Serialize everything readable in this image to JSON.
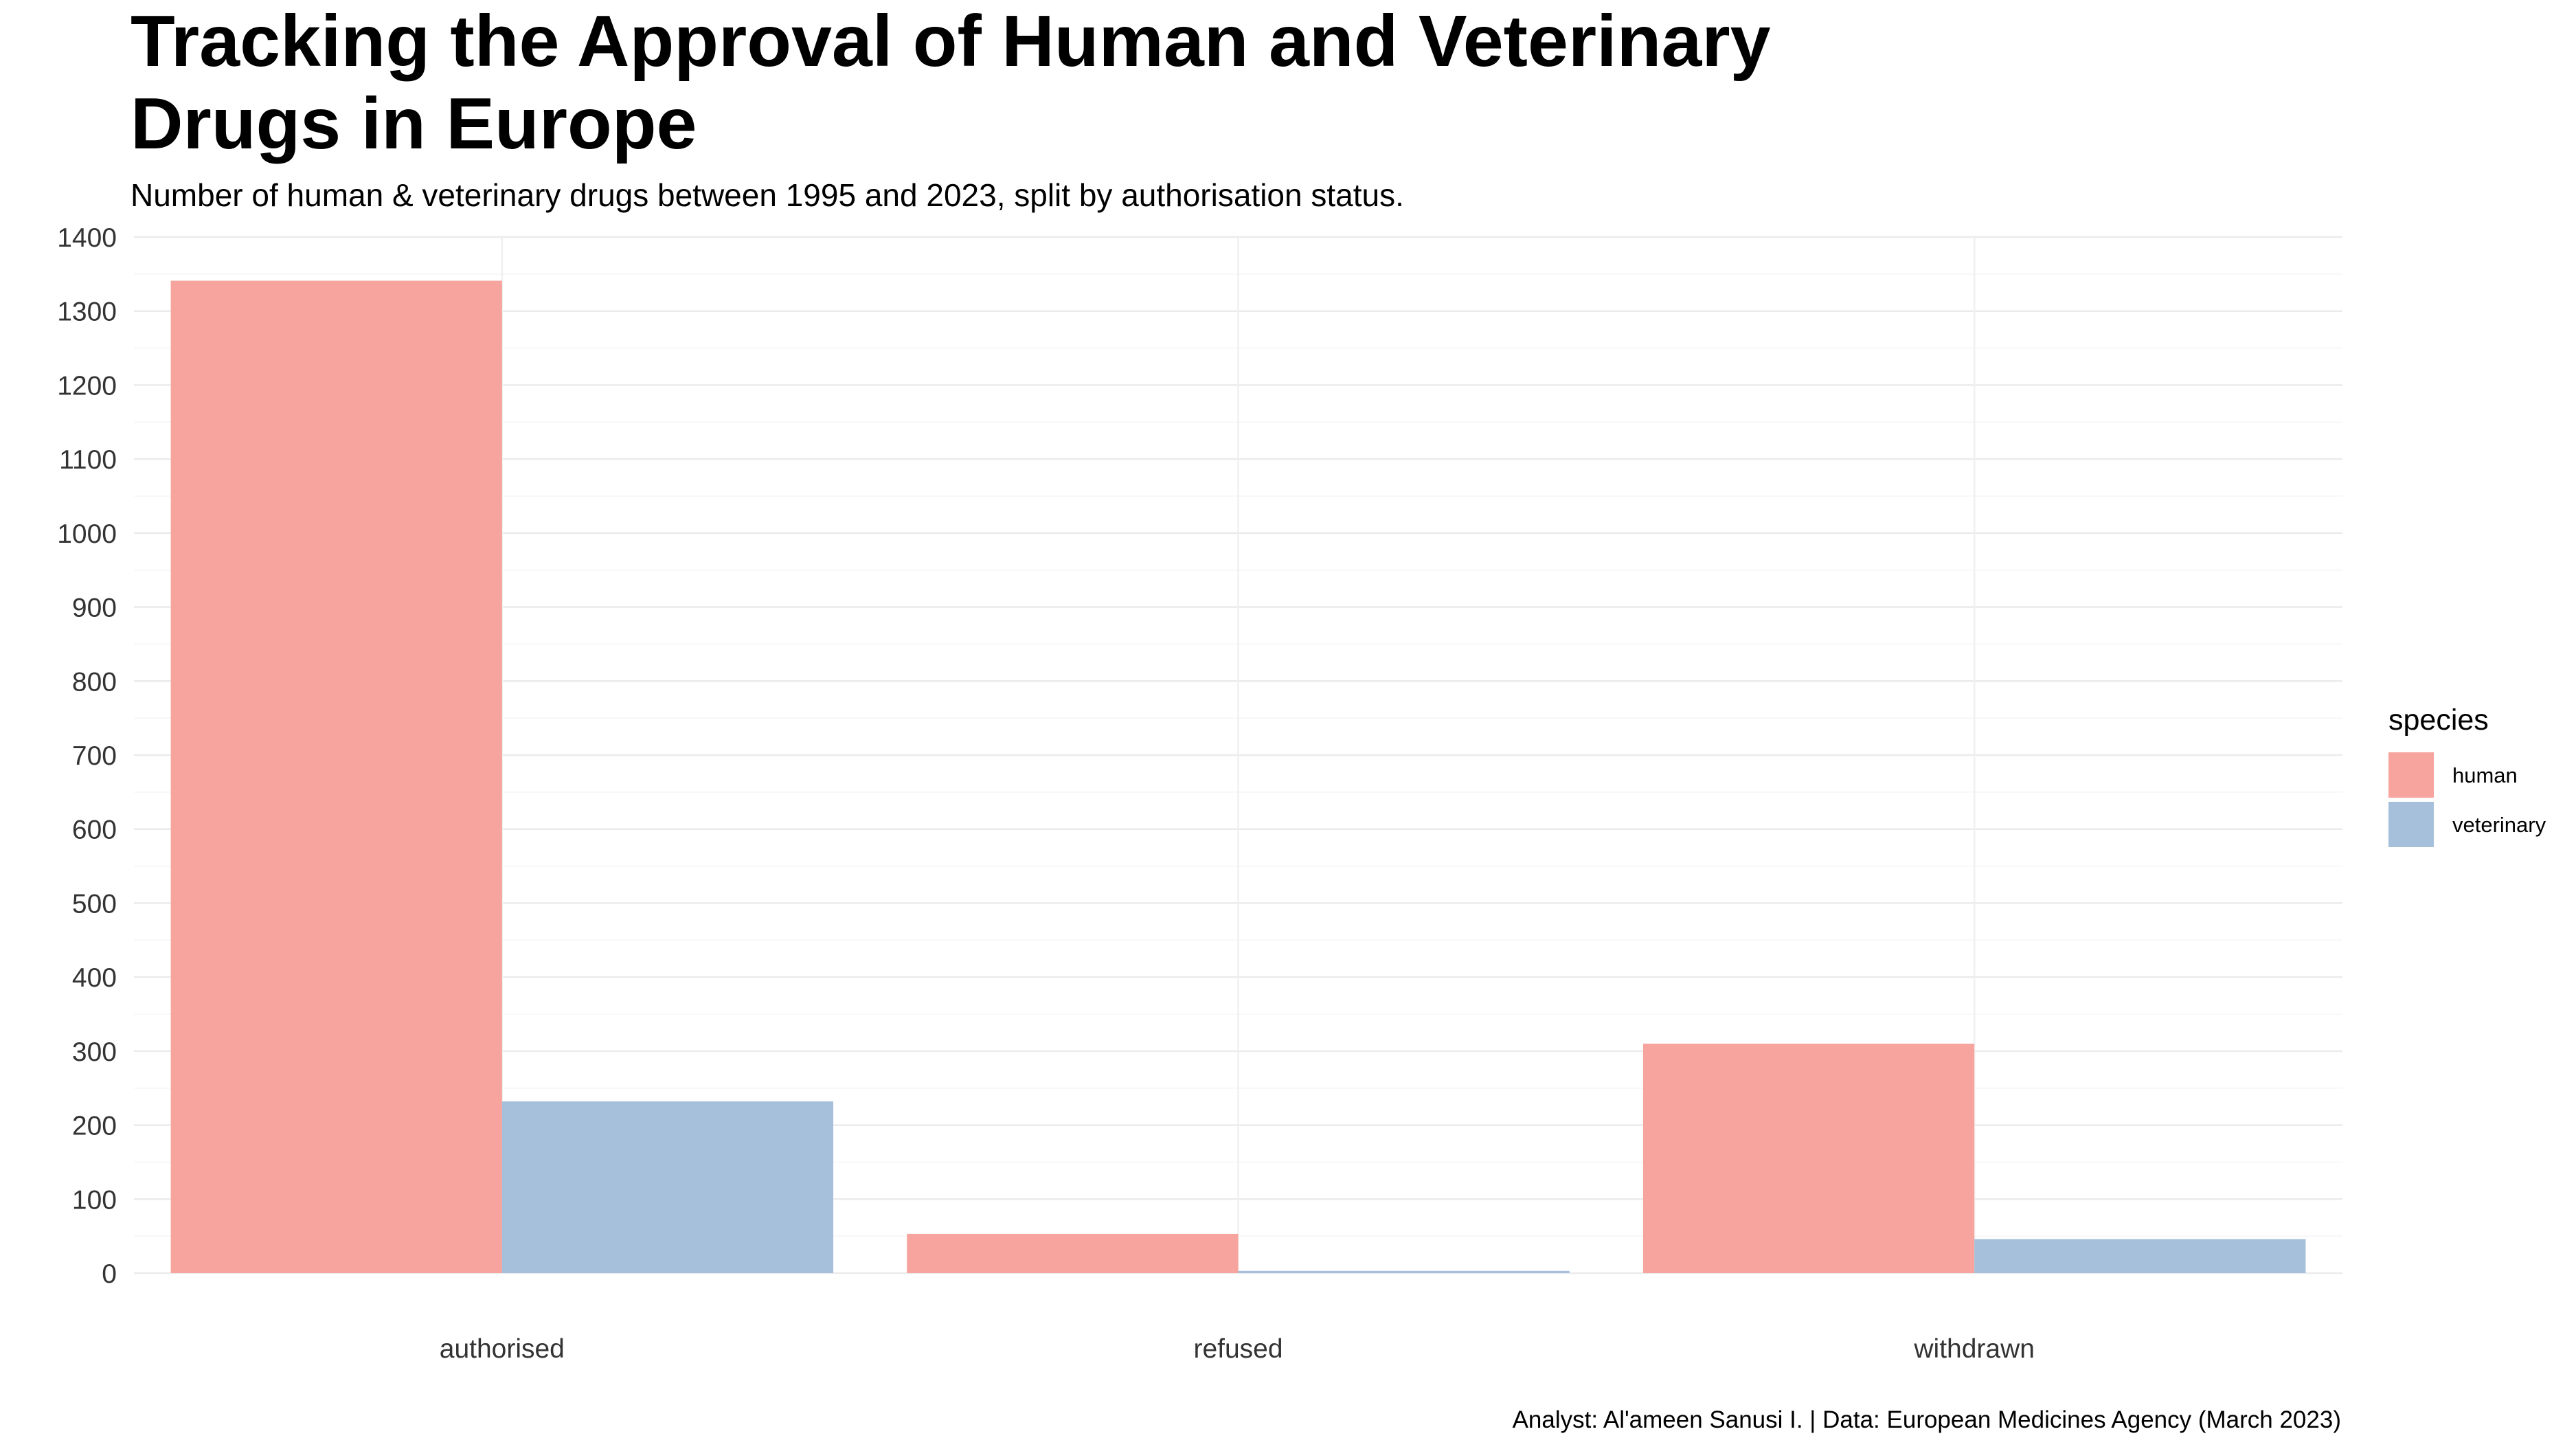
{
  "chart_data": {
    "type": "bar",
    "title": "Tracking the Approval of Human and Veterinary Drugs in Europe",
    "subtitle": "Number of human & veterinary drugs between 1995 and 2023, split by authorisation status.",
    "caption": "Analyst: Al'ameen Sanusi I. | Data: European Medicines Agency (March 2023)",
    "xlabel": "",
    "ylabel": "",
    "categories": [
      "authorised",
      "refused",
      "withdrawn"
    ],
    "series": [
      {
        "name": "human",
        "color": "#F7A39E",
        "values": [
          1341,
          53,
          310
        ]
      },
      {
        "name": "veterinary",
        "color": "#A6C0DB",
        "values": [
          232,
          3,
          46
        ]
      }
    ],
    "ylim": [
      0,
      1400
    ],
    "yticks": [
      0,
      100,
      200,
      300,
      400,
      500,
      600,
      700,
      800,
      900,
      1000,
      1100,
      1200,
      1300,
      1400
    ],
    "grid": true,
    "legend": {
      "title": "species",
      "position": "right"
    }
  }
}
